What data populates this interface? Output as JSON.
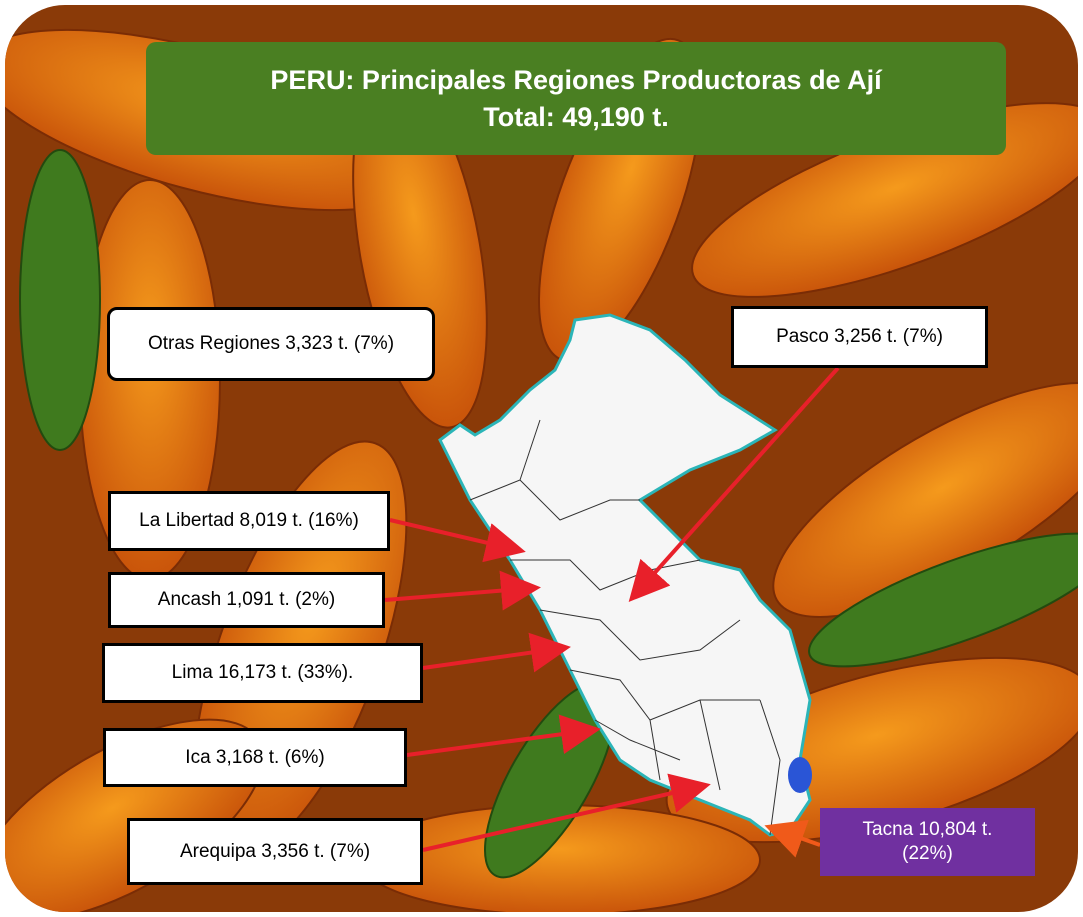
{
  "header": {
    "title": "PERU: Principales Regiones Productoras de Ají",
    "subtitle": "Total: 49,190 t."
  },
  "labels": [
    {
      "text": "Otras Regiones 3,323 t. (7%)"
    },
    {
      "text": "Pasco 3,256 t. (7%)"
    },
    {
      "text": "La Libertad 8,019 t. (16%)"
    },
    {
      "text": "Ancash 1,091 t. (2%)"
    },
    {
      "text": "Lima 16,173 t. (33%)."
    },
    {
      "text": "Ica 3,168 t. (6%)"
    },
    {
      "text": "Arequipa 3,356 t. (7%)"
    },
    {
      "text": "Tacna 10,804 t. (22%)"
    }
  ]
}
